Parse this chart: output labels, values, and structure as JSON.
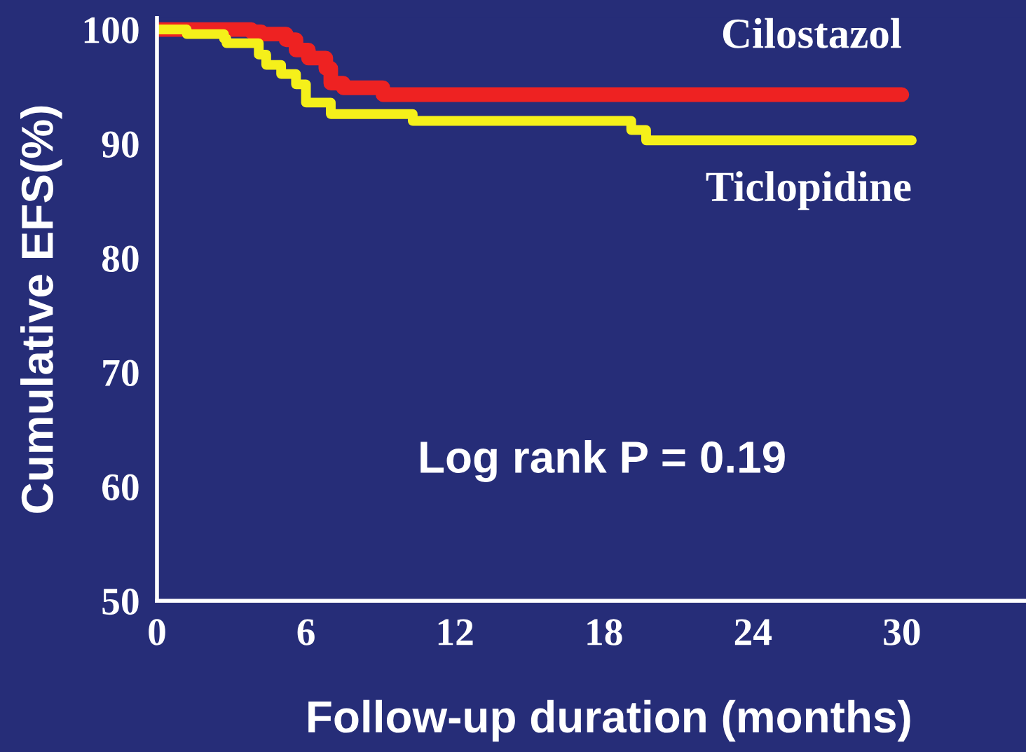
{
  "chart_data": {
    "type": "step",
    "xlabel": "Follow-up duration (months)",
    "ylabel": "Cumulative EFS(%)",
    "xlim": [
      0,
      35
    ],
    "xticks": [
      0,
      6,
      12,
      18,
      24,
      30
    ],
    "ylim": [
      50,
      101
    ],
    "yticks": [
      50,
      60,
      70,
      80,
      90,
      100
    ],
    "grid": false,
    "legend": false,
    "series": [
      {
        "name": "Cilostazol",
        "color": "#ee2222",
        "x": [
          0,
          3.8,
          4.2,
          5.2,
          5.6,
          6.1,
          6.8,
          7.0,
          7.5,
          9.1,
          30
        ],
        "values": [
          100,
          99.8,
          99.6,
          99.1,
          98.2,
          97.5,
          96.6,
          95.3,
          94.9,
          94.3,
          94.3
        ]
      },
      {
        "name": "Ticlopidine",
        "color": "#f5f01a",
        "x": [
          0,
          1.2,
          2.7,
          2.8,
          4.1,
          4.4,
          5.0,
          5.6,
          6.0,
          7.0,
          10.3,
          19.1,
          19.7,
          30.4
        ],
        "values": [
          100,
          99.6,
          99.2,
          98.8,
          97.8,
          96.9,
          96.1,
          95.2,
          93.6,
          92.6,
          92.0,
          91.2,
          90.3,
          90.3
        ]
      }
    ],
    "annotations": [
      "Log rank P = 0.19"
    ]
  }
}
